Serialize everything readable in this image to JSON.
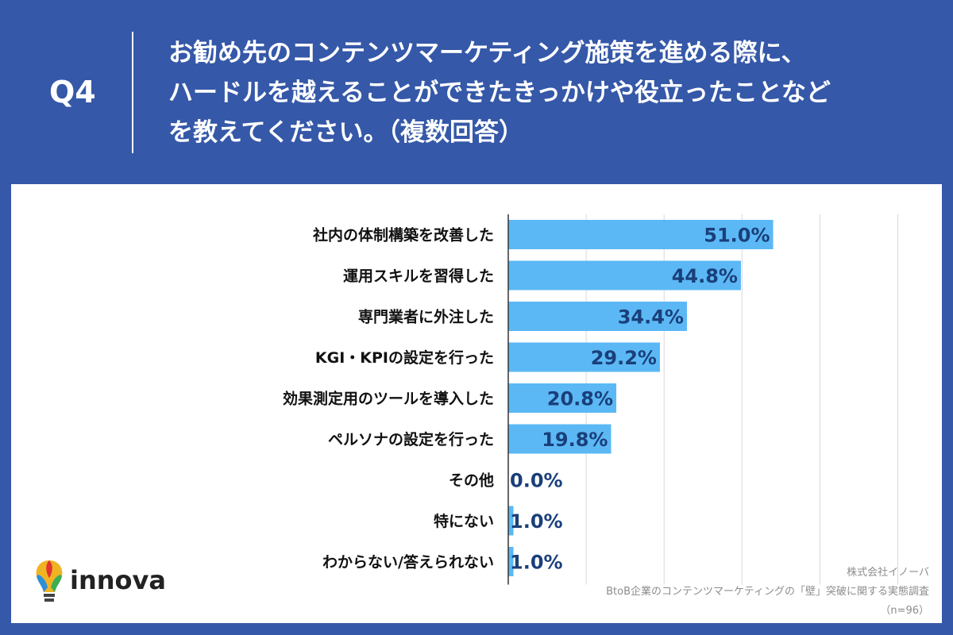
{
  "header": {
    "qnum": "Q4",
    "question_lines": [
      "お勧め先のコンテンツマーケティング施策を進める際に、",
      "ハードルを越えることができたきっかけや役立ったことなど",
      "を教えてください。（複数回答）"
    ]
  },
  "chart_data": {
    "type": "bar",
    "orientation": "horizontal",
    "categories": [
      "社内の体制構築を改善した",
      "運用スキルを習得した",
      "専門業者に外注した",
      "KGI・KPIの設定を行った",
      "効果測定用のツールを導入した",
      "ペルソナの設定を行った",
      "その他",
      "特にない",
      "わからない/答えられない"
    ],
    "values": [
      51.0,
      44.8,
      34.4,
      29.2,
      20.8,
      19.8,
      0.0,
      1.0,
      1.0
    ],
    "value_labels": [
      "51.0%",
      "44.8%",
      "34.4%",
      "29.2%",
      "20.8%",
      "19.8%",
      "0.0%",
      "1.0%",
      "1.0%"
    ],
    "xlim": [
      0,
      80
    ],
    "gridlines": [
      15,
      30,
      45,
      60,
      75
    ],
    "grid": true,
    "bar_color": "#5bb8f5",
    "label_color": "#1a3f7a"
  },
  "credits": {
    "company": "株式会社イノーバ",
    "survey": "BtoB企業のコンテンツマーケティングの「壁」突破に関する実態調査",
    "sample": "（n=96）"
  },
  "logo": {
    "text": "innova",
    "icon": "lightbulb-icon"
  }
}
